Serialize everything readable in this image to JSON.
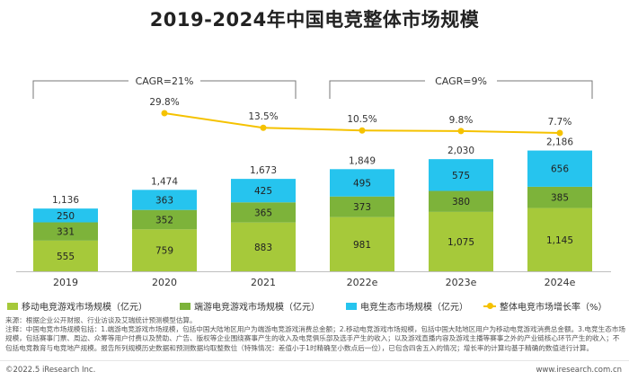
{
  "chart_data": {
    "type": "bar",
    "title": "2019-2024年中国电竞整体市场规模",
    "categories": [
      "2019",
      "2020",
      "2021",
      "2022e",
      "2023e",
      "2024e"
    ],
    "series": [
      {
        "name": "移动电竞游戏市场规模（亿元）",
        "color": "#a6c93a",
        "values": [
          555,
          759,
          883,
          981,
          1075,
          1145
        ]
      },
      {
        "name": "端游电竞游戏市场规模（亿元）",
        "color": "#7db33a",
        "values": [
          331,
          352,
          365,
          373,
          380,
          385
        ]
      },
      {
        "name": "电竞生态市场规模（亿元）",
        "color": "#26c4ee",
        "values": [
          250,
          363,
          425,
          495,
          575,
          656
        ]
      }
    ],
    "totals": [
      "1,136",
      "1,474",
      "1,673",
      "1,849",
      "2,030",
      "2,186"
    ],
    "growth_series": {
      "name": "整体电竞市场增长率（%）",
      "color": "#f5c200",
      "values": [
        29.8,
        13.5,
        10.5,
        9.8,
        7.7
      ],
      "labels": [
        "29.8%",
        "13.5%",
        "10.5%",
        "9.8%",
        "7.7%"
      ],
      "categories": [
        "2020",
        "2021",
        "2022e",
        "2023e",
        "2024e"
      ]
    },
    "cagr": [
      {
        "label": "CAGR=21%",
        "from": "2019",
        "to": "2021"
      },
      {
        "label": "CAGR=9%",
        "from": "2022e",
        "to": "2024e"
      }
    ],
    "legend_position": "bottom",
    "grid": false
  },
  "notes": {
    "line1": "来源：根据企业公开财报、行业访谈及艾瑞统计预测模型估算。",
    "line2": "注释：中国电竞市场规模包括：1.端游电竞游戏市场规模，包括中国大陆地区用户为端游电竞游戏消费总金额；2.移动电竞游戏市场规模，包括中国大陆地区用户为移动电竞游戏消费总金额。3.电竞生态市场规模，包括赛事门票、周边、众筹等用户付费以及赞助、广告、版权等企业围绕赛事产生的收入及电竞俱乐部及选手产生的收入；以及游戏直播内容及游戏主播等赛事之外的产业链核心环节产生的收入；不包括电竞教育与电竞地产规模。报告所列规模历史数据和预测数据均取整数位（特殊情况：差值小于1时精确至小数点后一位），已包含四舍五入的情况；增长率的计算均基于精确的数值进行计算。"
  },
  "footer": {
    "copyright": "©2022.5 iResearch Inc.",
    "site": "www.iresearch.com.cn"
  }
}
